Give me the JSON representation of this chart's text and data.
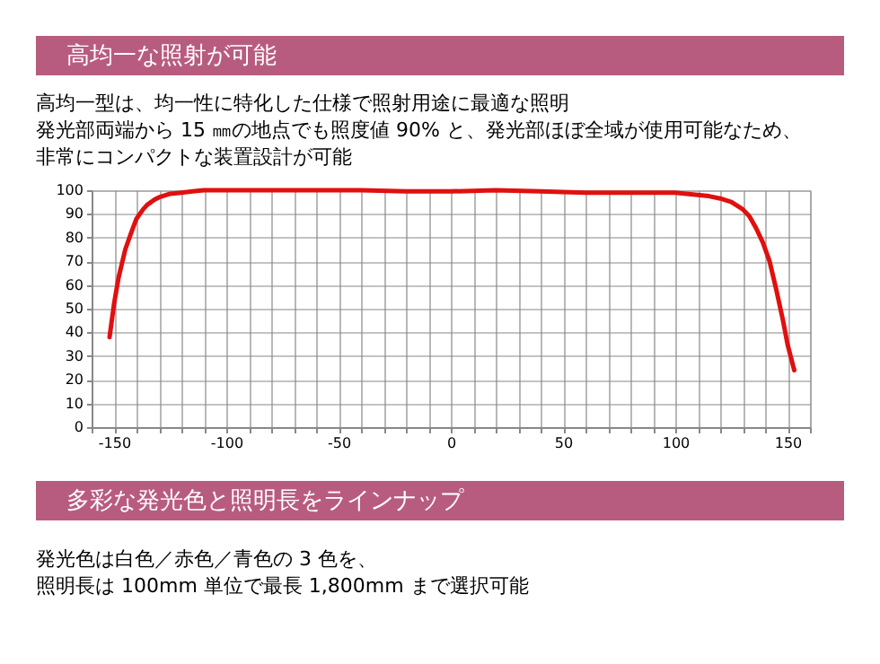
{
  "chart_data": {
    "type": "line",
    "title": "高均一な照射が可能",
    "annotations": [
      "高均一型は、均一性に特化した仕様で照射用途に最適な照明",
      "発光部両端から 15 ㎜の地点でも照度値 90% と、発光部ほぼ全域が使用可能なため、",
      "非常にコンパクトな装置設計が可能",
      "多彩な発光色と照明長をラインナップ",
      "発光色は白色／赤色／青色の 3 色を、",
      "照明長は 100mm 単位で最長 1,800mm まで選択可能"
    ],
    "x": [
      -152,
      -150,
      -148,
      -145,
      -142,
      -140,
      -137,
      -135,
      -132,
      -130,
      -125,
      -120,
      -115,
      -110,
      -100,
      -80,
      -60,
      -40,
      -20,
      0,
      20,
      40,
      60,
      80,
      100,
      105,
      110,
      115,
      120,
      125,
      130,
      133,
      136,
      139,
      142,
      145,
      148,
      150,
      153
    ],
    "series": [
      {
        "color": "#e01010",
        "values": [
          38,
          52,
          63,
          75,
          83,
          88,
          92,
          94,
          96,
          97,
          98.5,
          99,
          99.5,
          100,
          100,
          100,
          100,
          100,
          99.5,
          99.5,
          100,
          99.5,
          99,
          99,
          99,
          98.5,
          98,
          97.5,
          96.5,
          95,
          92,
          89,
          84,
          78,
          70,
          58,
          45,
          35,
          24
        ]
      }
    ],
    "xlim": [
      -160,
      160
    ],
    "xticks": [
      {
        "value": -160,
        "label": null
      },
      -150,
      {
        "value": -140,
        "label": null
      },
      {
        "value": -130,
        "label": null
      },
      {
        "value": -120,
        "label": null
      },
      {
        "value": -110,
        "label": null
      },
      -100,
      {
        "value": -90,
        "label": null
      },
      {
        "value": -80,
        "label": null
      },
      {
        "value": -70,
        "label": null
      },
      {
        "value": -60,
        "label": null
      },
      -50,
      {
        "value": -40,
        "label": null
      },
      {
        "value": -30,
        "label": null
      },
      {
        "value": -20,
        "label": null
      },
      {
        "value": -10,
        "label": null
      },
      0,
      {
        "value": 10,
        "label": null
      },
      {
        "value": 20,
        "label": null
      },
      {
        "value": 30,
        "label": null
      },
      {
        "value": 40,
        "label": null
      },
      50,
      {
        "value": 60,
        "label": null
      },
      {
        "value": 70,
        "label": null
      },
      {
        "value": 80,
        "label": null
      },
      {
        "value": 90,
        "label": null
      },
      100,
      {
        "value": 110,
        "label": null
      },
      {
        "value": 120,
        "label": null
      },
      {
        "value": 130,
        "label": null
      },
      {
        "value": 140,
        "label": null
      },
      150,
      {
        "value": 160,
        "label": null
      }
    ],
    "ylim": [
      0,
      100
    ],
    "yticks": [
      0,
      10,
      20,
      30,
      40,
      50,
      60,
      70,
      80,
      90,
      100
    ],
    "grid": true,
    "marker": "none",
    "line_style": "solid"
  }
}
